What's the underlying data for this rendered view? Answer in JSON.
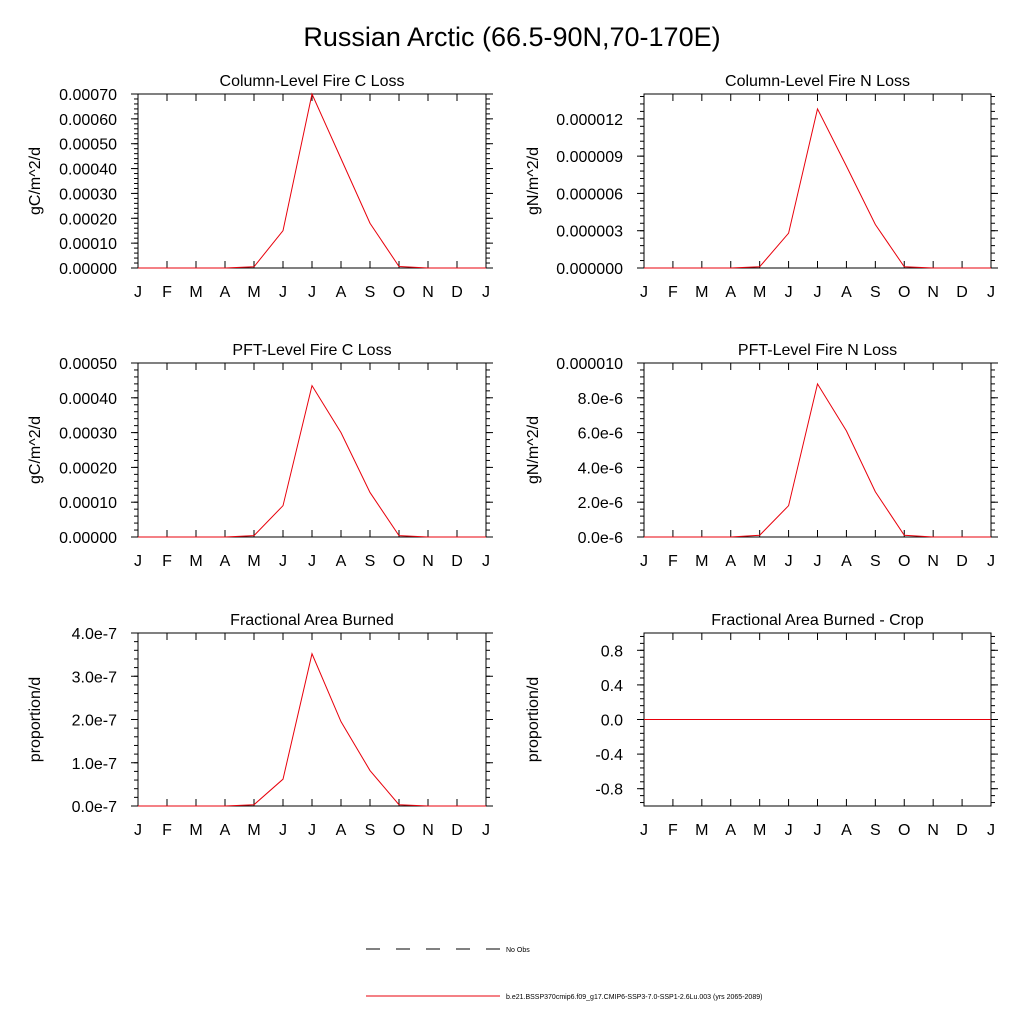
{
  "title": "Russian Arctic (66.5-90N,70-170E)",
  "legend": {
    "items": [
      {
        "label": "No Obs",
        "style": "dashed",
        "color": "#000000"
      },
      {
        "label": "b.e21.BSSP370cmip6.f09_g17.CMIP6-SSP3-7.0-SSP1-2.6Lu.003 (yrs 2065-2089)",
        "style": "solid",
        "color": "#e8000b"
      }
    ]
  },
  "colors": {
    "series": "#e8000b",
    "axis": "#000000"
  },
  "chart_data": [
    {
      "type": "line",
      "title": "Column-Level Fire C Loss",
      "ylabel": "gC/m^2/d",
      "categories": [
        "J",
        "F",
        "M",
        "A",
        "M",
        "J",
        "J",
        "A",
        "S",
        "O",
        "N",
        "D",
        "J"
      ],
      "ylim": [
        0,
        0.0007
      ],
      "yticks": [
        0,
        0.0001,
        0.0002,
        0.0003,
        0.0004,
        0.0005,
        0.0006,
        0.0007
      ],
      "yticklabels": [
        "0.00000",
        "0.00010",
        "0.00020",
        "0.00030",
        "0.00040",
        "0.00050",
        "0.00060",
        "0.00070"
      ],
      "series": [
        {
          "values": [
            0,
            0,
            0,
            0,
            5e-06,
            0.00015,
            0.0007,
            0.00044,
            0.00018,
            6e-06,
            0,
            0,
            0
          ]
        }
      ]
    },
    {
      "type": "line",
      "title": "Column-Level Fire N Loss",
      "ylabel": "gN/m^2/d",
      "categories": [
        "J",
        "F",
        "M",
        "A",
        "M",
        "J",
        "J",
        "A",
        "S",
        "O",
        "N",
        "D",
        "J"
      ],
      "ylim": [
        0,
        1.4e-05
      ],
      "yticks": [
        0,
        3e-06,
        6e-06,
        9e-06,
        1.2e-05
      ],
      "yticklabels": [
        "0.000000",
        "0.000003",
        "0.000006",
        "0.000009",
        "0.000012"
      ],
      "series": [
        {
          "values": [
            0,
            0,
            0,
            0,
            1e-07,
            2.8e-06,
            1.28e-05,
            8.2e-06,
            3.5e-06,
            1e-07,
            0,
            0,
            0
          ]
        }
      ]
    },
    {
      "type": "line",
      "title": "PFT-Level Fire C Loss",
      "ylabel": "gC/m^2/d",
      "categories": [
        "J",
        "F",
        "M",
        "A",
        "M",
        "J",
        "J",
        "A",
        "S",
        "O",
        "N",
        "D",
        "J"
      ],
      "ylim": [
        0,
        0.0005
      ],
      "yticks": [
        0,
        0.0001,
        0.0002,
        0.0003,
        0.0004,
        0.0005
      ],
      "yticklabels": [
        "0.00000",
        "0.00010",
        "0.00020",
        "0.00030",
        "0.00040",
        "0.00050"
      ],
      "series": [
        {
          "values": [
            0,
            0,
            0,
            0,
            4e-06,
            9e-05,
            0.000435,
            0.0003,
            0.000128,
            4e-06,
            0,
            0,
            0
          ]
        }
      ]
    },
    {
      "type": "line",
      "title": "PFT-Level Fire N Loss",
      "ylabel": "gN/m^2/d",
      "categories": [
        "J",
        "F",
        "M",
        "A",
        "M",
        "J",
        "J",
        "A",
        "S",
        "O",
        "N",
        "D",
        "J"
      ],
      "ylim": [
        0,
        1e-05
      ],
      "yticks": [
        0,
        2e-06,
        4e-06,
        6e-06,
        8e-06,
        1e-05
      ],
      "yticklabels": [
        "0.0e-6",
        "2.0e-6",
        "4.0e-6",
        "6.0e-6",
        "8.0e-6",
        "0.000010"
      ],
      "series": [
        {
          "values": [
            0,
            0,
            0,
            0,
            1e-07,
            1.8e-06,
            8.8e-06,
            6.1e-06,
            2.6e-06,
            1e-07,
            0,
            0,
            0
          ]
        }
      ]
    },
    {
      "type": "line",
      "title": "Fractional Area Burned",
      "ylabel": "proportion/d",
      "categories": [
        "J",
        "F",
        "M",
        "A",
        "M",
        "J",
        "J",
        "A",
        "S",
        "O",
        "N",
        "D",
        "J"
      ],
      "ylim": [
        0,
        4e-07
      ],
      "yticks": [
        0,
        1e-07,
        2e-07,
        3e-07,
        4e-07
      ],
      "yticklabels": [
        "0.0e-7",
        "1.0e-7",
        "2.0e-7",
        "3.0e-7",
        "4.0e-7"
      ],
      "series": [
        {
          "values": [
            0,
            0,
            0,
            0,
            3e-09,
            6.2e-08,
            3.52e-07,
            1.95e-07,
            8.2e-08,
            3e-09,
            0,
            0,
            0
          ]
        }
      ]
    },
    {
      "type": "line",
      "title": "Fractional Area Burned - Crop",
      "ylabel": "proportion/d",
      "categories": [
        "J",
        "F",
        "M",
        "A",
        "M",
        "J",
        "J",
        "A",
        "S",
        "O",
        "N",
        "D",
        "J"
      ],
      "ylim": [
        -1,
        1
      ],
      "yticks": [
        -0.8,
        -0.4,
        0.0,
        0.4,
        0.8
      ],
      "yticklabels": [
        "-0.8",
        "-0.4",
        "0.0",
        "0.4",
        "0.8"
      ],
      "series": [
        {
          "values": [
            0,
            0,
            0,
            0,
            0,
            0,
            0,
            0,
            0,
            0,
            0,
            0,
            0
          ]
        }
      ]
    }
  ]
}
